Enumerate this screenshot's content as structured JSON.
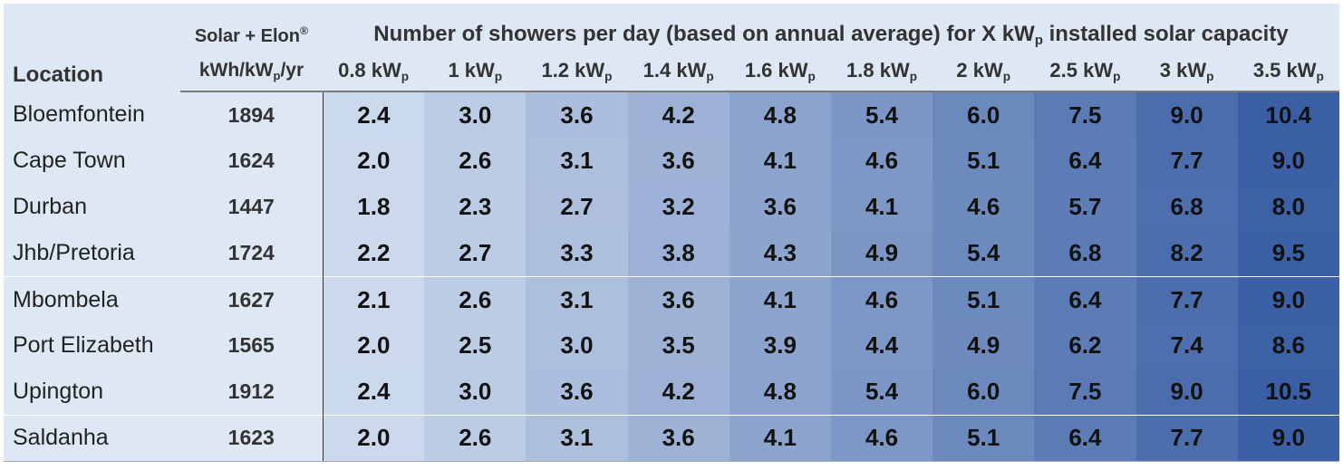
{
  "header": {
    "location": "Location",
    "brand": "Solar + Elon",
    "brand_mark": "®",
    "unit_pre": "kWh/kW",
    "unit_sub": "p",
    "unit_post": "/yr",
    "title_pre": "Number of showers per day (based on annual average) for X kW",
    "title_sub": "p",
    "title_post": " installed solar capacity",
    "capacities": [
      {
        "value": "0.8 kW",
        "sub": "p"
      },
      {
        "value": "1 kW",
        "sub": "p"
      },
      {
        "value": "1.2 kW",
        "sub": "p"
      },
      {
        "value": "1.4 kW",
        "sub": "p"
      },
      {
        "value": "1.6 kW",
        "sub": "p"
      },
      {
        "value": "1.8 kW",
        "sub": "p"
      },
      {
        "value": "2 kW",
        "sub": "p"
      },
      {
        "value": "2.5 kW",
        "sub": "p"
      },
      {
        "value": "3 kW",
        "sub": "p"
      },
      {
        "value": "3.5 kW",
        "sub": "p"
      }
    ]
  },
  "rows": [
    {
      "location": "Bloemfontein",
      "kwh": "1894",
      "values": [
        "2.4",
        "3.0",
        "3.6",
        "4.2",
        "4.8",
        "5.4",
        "6.0",
        "7.5",
        "9.0",
        "10.4"
      ]
    },
    {
      "location": "Cape Town",
      "kwh": "1624",
      "values": [
        "2.0",
        "2.6",
        "3.1",
        "3.6",
        "4.1",
        "4.6",
        "5.1",
        "6.4",
        "7.7",
        "9.0"
      ]
    },
    {
      "location": "Durban",
      "kwh": "1447",
      "values": [
        "1.8",
        "2.3",
        "2.7",
        "3.2",
        "3.6",
        "4.1",
        "4.6",
        "5.7",
        "6.8",
        "8.0"
      ]
    },
    {
      "location": "Jhb/Pretoria",
      "kwh": "1724",
      "values": [
        "2.2",
        "2.7",
        "3.3",
        "3.8",
        "4.3",
        "4.9",
        "5.4",
        "6.8",
        "8.2",
        "9.5"
      ]
    },
    {
      "location": "Mbombela",
      "kwh": "1627",
      "values": [
        "2.1",
        "2.6",
        "3.1",
        "3.6",
        "4.1",
        "4.6",
        "5.1",
        "6.4",
        "7.7",
        "9.0"
      ]
    },
    {
      "location": "Port Elizabeth",
      "kwh": "1565",
      "values": [
        "2.0",
        "2.5",
        "3.0",
        "3.5",
        "3.9",
        "4.4",
        "4.9",
        "6.2",
        "7.4",
        "8.6"
      ]
    },
    {
      "location": "Upington",
      "kwh": "1912",
      "values": [
        "2.4",
        "3.0",
        "3.6",
        "4.2",
        "4.8",
        "5.4",
        "6.0",
        "7.5",
        "9.0",
        "10.5"
      ]
    },
    {
      "location": "Saldanha",
      "kwh": "1623",
      "values": [
        "2.0",
        "2.6",
        "3.1",
        "3.6",
        "4.1",
        "4.6",
        "5.1",
        "6.4",
        "7.7",
        "9.0"
      ]
    }
  ],
  "colors": {
    "header_bg": "#dde8f4",
    "heat_low": "#cedbee",
    "heat_high": "#3a5fa4"
  }
}
